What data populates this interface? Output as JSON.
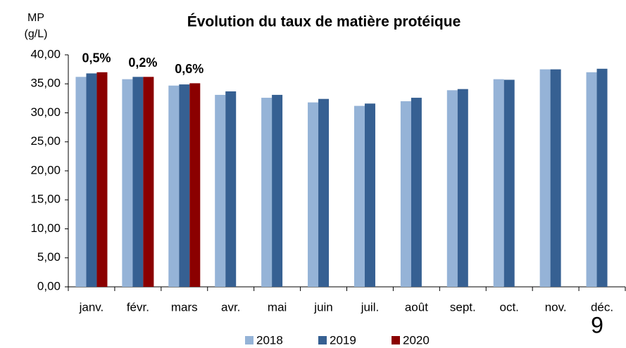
{
  "chart_data": {
    "type": "bar",
    "title": "Évolution du taux de matière protéique",
    "y_label": [
      "MP",
      "(g/L)"
    ],
    "categories": [
      "janv.",
      "févr.",
      "mars",
      "avr.",
      "mai",
      "juin",
      "juil.",
      "août",
      "sept.",
      "oct.",
      "nov.",
      "déc."
    ],
    "series": [
      {
        "name": "2018",
        "color": "#95b3d7",
        "values": [
          36.2,
          35.8,
          34.7,
          33.1,
          32.6,
          31.8,
          31.2,
          32.0,
          33.9,
          35.8,
          37.5,
          37.0
        ]
      },
      {
        "name": "2019",
        "color": "#366092",
        "values": [
          36.8,
          36.2,
          34.9,
          33.7,
          33.1,
          32.4,
          31.6,
          32.6,
          34.1,
          35.7,
          37.5,
          37.6
        ]
      },
      {
        "name": "2020",
        "color": "#8b0000",
        "values": [
          37.0,
          36.2,
          35.1,
          null,
          null,
          null,
          null,
          null,
          null,
          null,
          null,
          null
        ]
      }
    ],
    "annotations": [
      "0,5%",
      "0,2%",
      "0,6%"
    ],
    "page_number": "9",
    "ylim": [
      0,
      40
    ],
    "yticks": [
      {
        "value": 0,
        "label": "0,00"
      },
      {
        "value": 5,
        "label": "5,00"
      },
      {
        "value": 10,
        "label": "10,00"
      },
      {
        "value": 15,
        "label": "15,00"
      },
      {
        "value": 20,
        "label": "20,00"
      },
      {
        "value": 25,
        "label": "25,00"
      },
      {
        "value": 30,
        "label": "30,00"
      },
      {
        "value": 35,
        "label": "35,00"
      },
      {
        "value": 40,
        "label": "40,00"
      }
    ],
    "grid": false,
    "legend": "bottom"
  }
}
